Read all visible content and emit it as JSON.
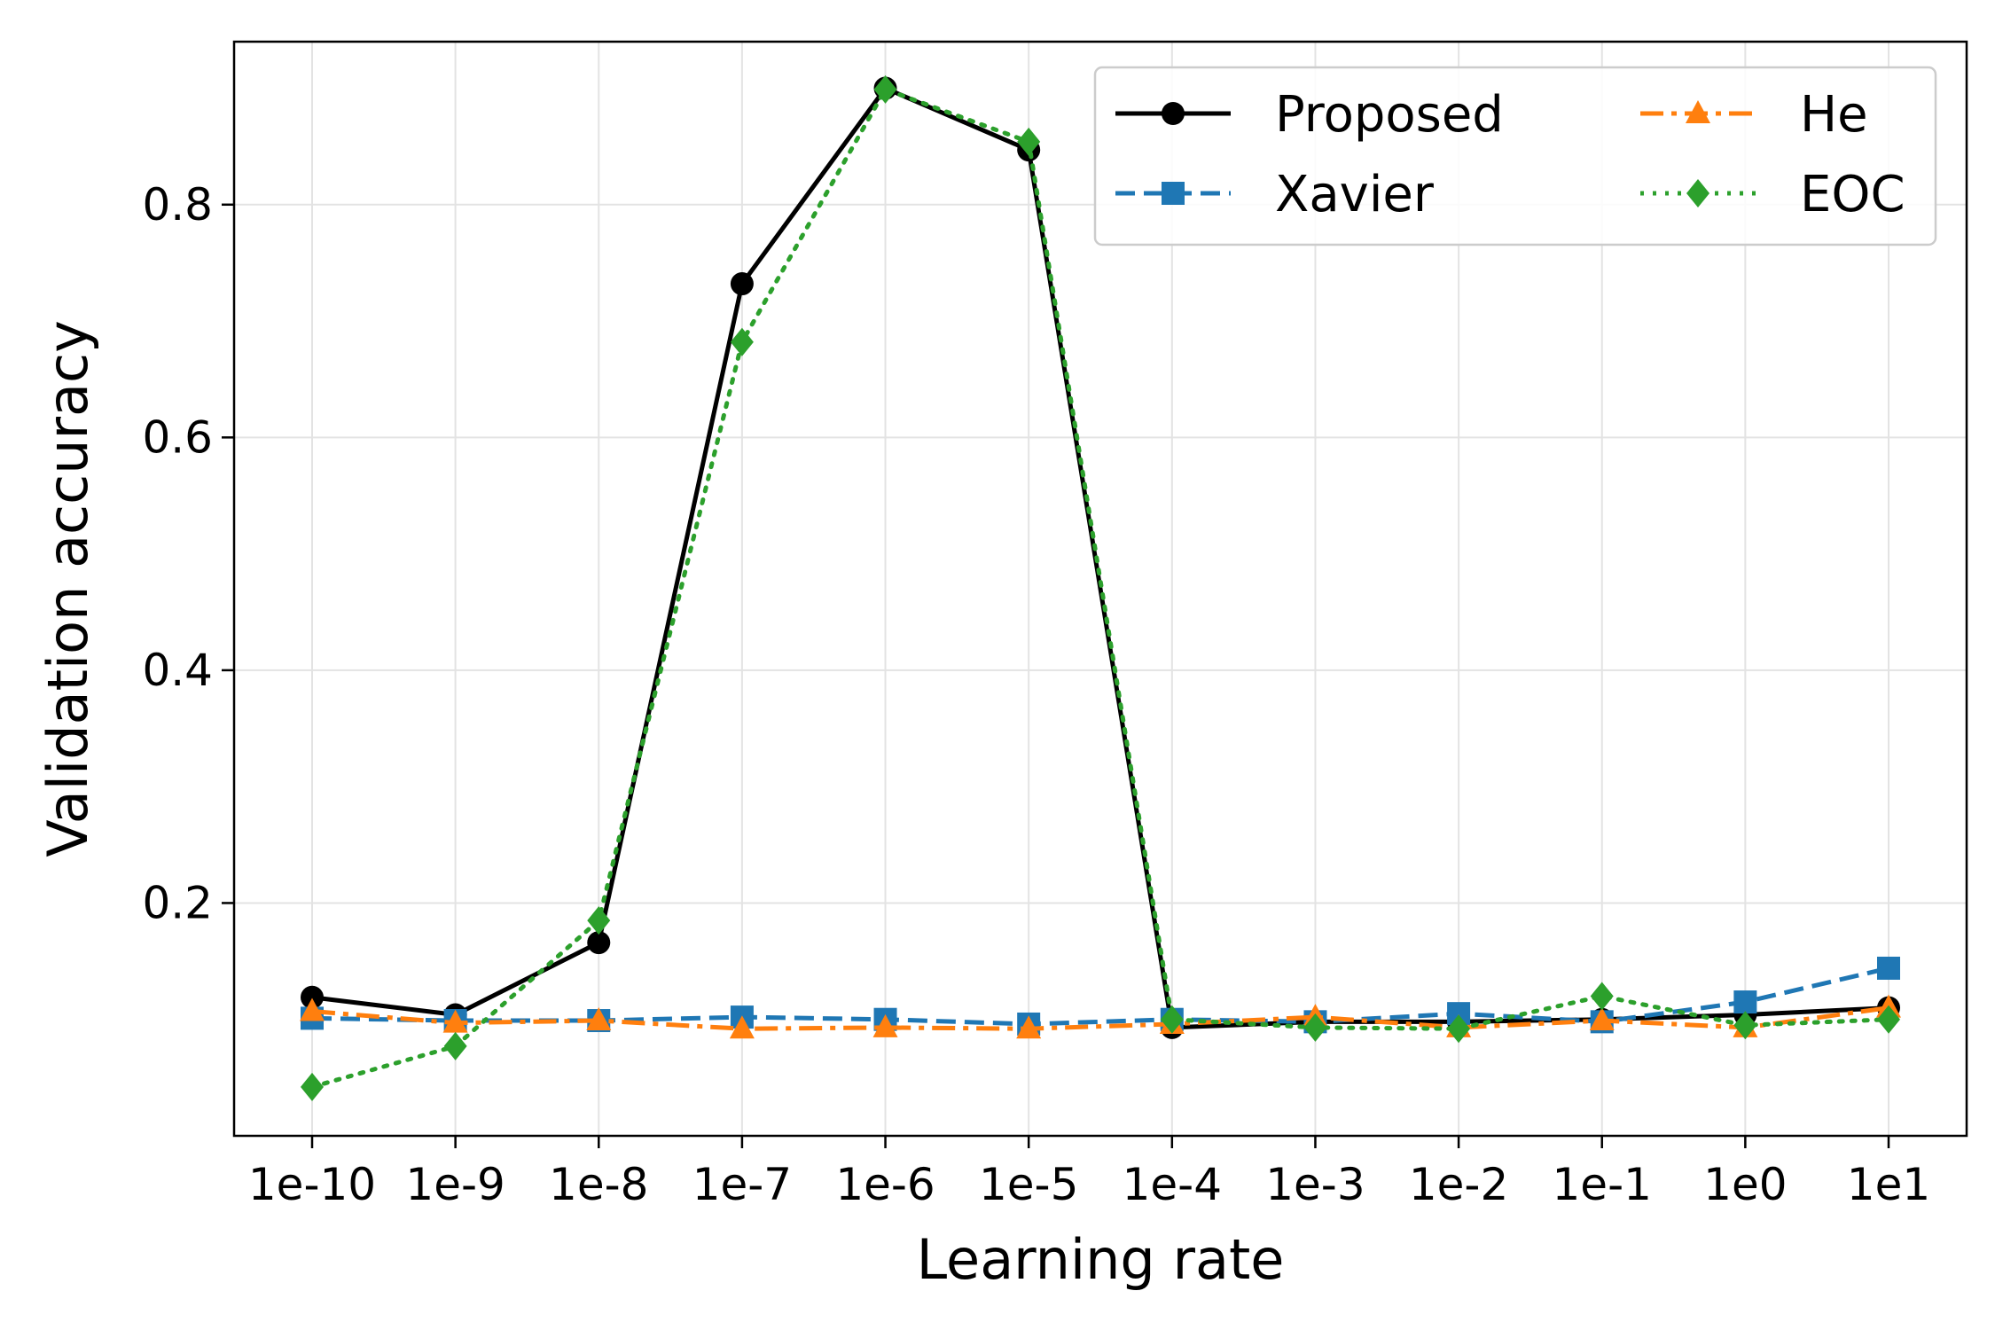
{
  "chart_data": {
    "type": "line",
    "xlabel": "Learning rate",
    "ylabel": "Validation accuracy",
    "categories": [
      "1e-10",
      "1e-9",
      "1e-8",
      "1e-7",
      "1e-6",
      "1e-5",
      "1e-4",
      "1e-3",
      "1e-2",
      "1e-1",
      "1e0",
      "1e1"
    ],
    "ylim": [
      0.0,
      0.94
    ],
    "yticks": [
      "0.2",
      "0.4",
      "0.6",
      "0.8"
    ],
    "grid": true,
    "legend_placement": "top-right",
    "series": [
      {
        "name": "Proposed",
        "color": "#000000",
        "linestyle": "solid",
        "marker": "circle",
        "values": [
          0.119,
          0.104,
          0.166,
          0.732,
          0.9,
          0.847,
          0.093,
          0.098,
          0.098,
          0.1,
          0.104,
          0.11
        ]
      },
      {
        "name": "Xavier",
        "color": "#1f77b4",
        "linestyle": "dashed",
        "marker": "square",
        "values": [
          0.101,
          0.099,
          0.099,
          0.102,
          0.1,
          0.096,
          0.1,
          0.098,
          0.105,
          0.098,
          0.115,
          0.144
        ]
      },
      {
        "name": "He",
        "color": "#ff7f0e",
        "linestyle": "dashdot",
        "marker": "triangle",
        "values": [
          0.107,
          0.097,
          0.099,
          0.092,
          0.093,
          0.092,
          0.096,
          0.102,
          0.093,
          0.099,
          0.093,
          0.11
        ]
      },
      {
        "name": "EOC",
        "color": "#2ca02c",
        "linestyle": "dotted",
        "marker": "diamond",
        "values": [
          0.042,
          0.077,
          0.185,
          0.682,
          0.899,
          0.854,
          0.1,
          0.093,
          0.092,
          0.12,
          0.095,
          0.1
        ]
      }
    ]
  }
}
